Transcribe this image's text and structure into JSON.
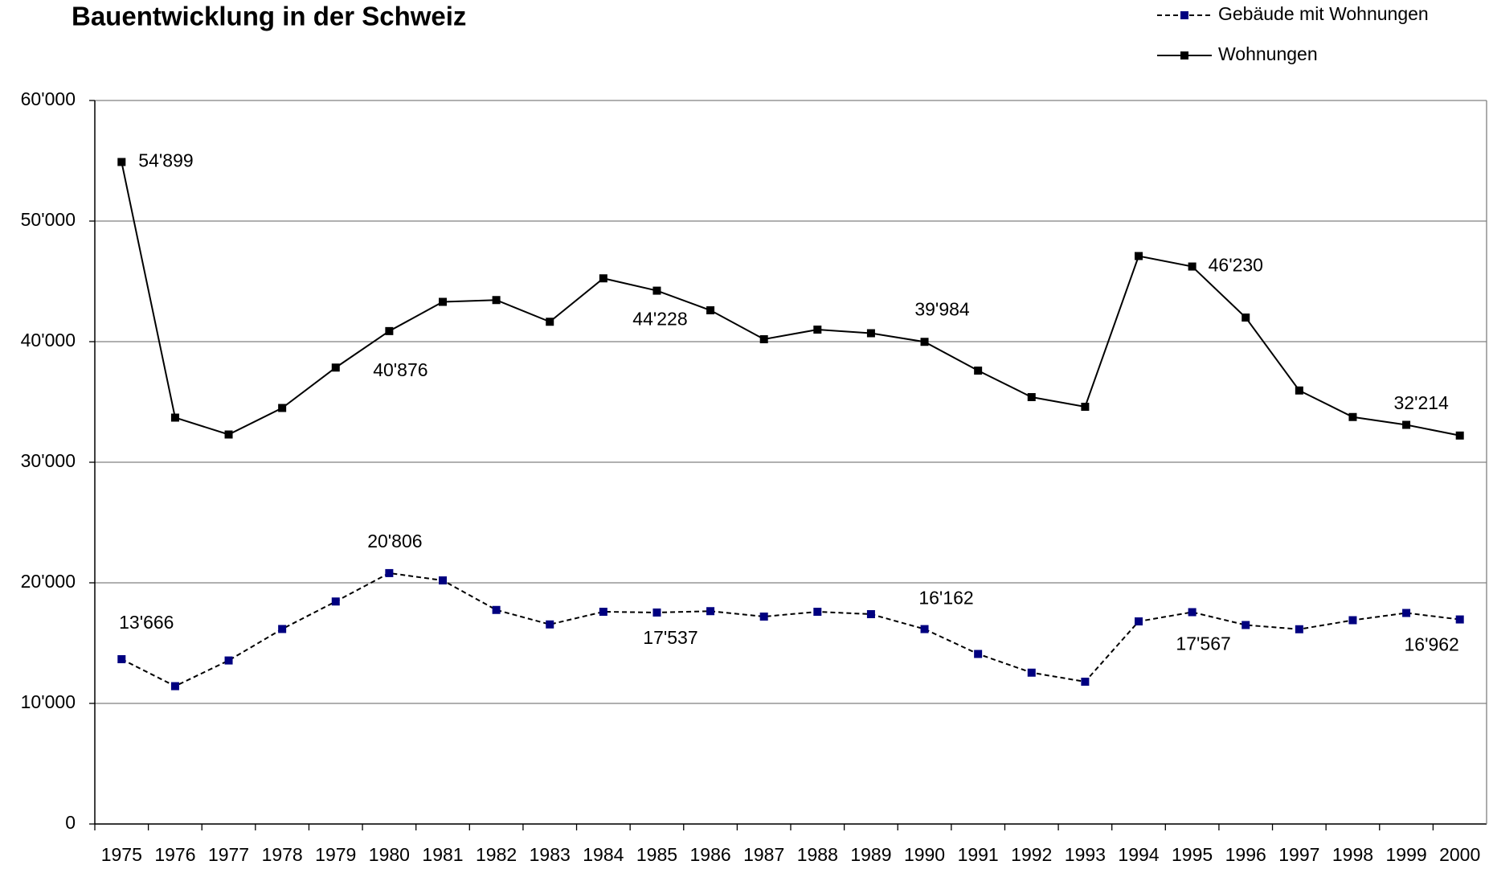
{
  "chart_data": {
    "type": "line",
    "title": "Bauentwicklung in der Schweiz",
    "categories": [
      "1975",
      "1976",
      "1977",
      "1978",
      "1979",
      "1980",
      "1981",
      "1982",
      "1983",
      "1984",
      "1985",
      "1986",
      "1987",
      "1988",
      "1989",
      "1990",
      "1991",
      "1992",
      "1993",
      "1994",
      "1995",
      "1996",
      "1997",
      "1998",
      "1999",
      "2000"
    ],
    "series": [
      {
        "name": "Gebäude mit Wohnungen",
        "color": "#000080",
        "line_color": "#000000",
        "dashed": true,
        "values": [
          13666,
          11430,
          13560,
          16170,
          18450,
          20806,
          20200,
          17750,
          16550,
          17600,
          17537,
          17650,
          17200,
          17600,
          17400,
          16162,
          14100,
          12550,
          11800,
          16800,
          17567,
          16500,
          16150,
          16900,
          17500,
          16962
        ],
        "value_labels": [
          "13'666",
          null,
          null,
          null,
          null,
          "20'806",
          null,
          null,
          null,
          null,
          "17'537",
          null,
          null,
          null,
          null,
          "16'162",
          null,
          null,
          null,
          null,
          "17'567",
          null,
          null,
          null,
          null,
          "16'962"
        ]
      },
      {
        "name": "Wohnungen",
        "color": "#000000",
        "line_color": "#000000",
        "dashed": false,
        "values": [
          54899,
          33700,
          32300,
          34500,
          37850,
          40876,
          43300,
          43450,
          41650,
          45250,
          44228,
          42600,
          40200,
          41000,
          40700,
          39984,
          37600,
          35400,
          34600,
          47100,
          46230,
          42000,
          35950,
          33750,
          33100,
          32214
        ],
        "value_labels": [
          "54'899",
          null,
          null,
          null,
          null,
          "40'876",
          null,
          null,
          null,
          null,
          "44'228",
          null,
          null,
          null,
          null,
          "39'984",
          null,
          null,
          null,
          null,
          "46'230",
          null,
          null,
          null,
          null,
          "32'214"
        ]
      }
    ],
    "ylim": [
      0,
      60000
    ],
    "yticks": [
      0,
      {
        "value": 10000,
        "label": "10'000"
      },
      {
        "value": 20000,
        "label": "20'000"
      },
      {
        "value": 30000,
        "label": "30'000"
      },
      {
        "value": 40000,
        "label": "40'000"
      },
      {
        "value": 50000,
        "label": "50'000"
      },
      {
        "value": 60000,
        "label": "60'000"
      }
    ],
    "grid": true,
    "legend": "top-right"
  }
}
